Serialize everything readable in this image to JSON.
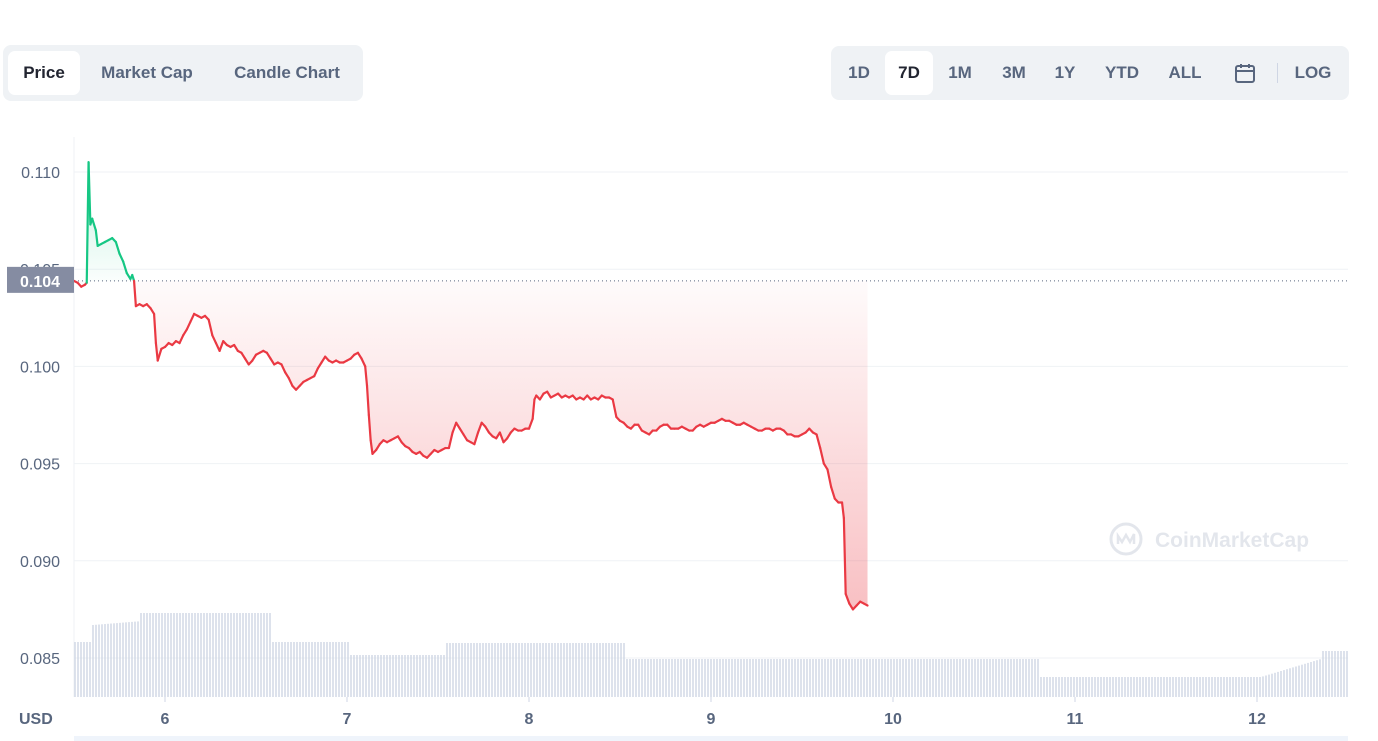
{
  "tabs": [
    "Price",
    "Market Cap",
    "Candle Chart"
  ],
  "active_tab": "Price",
  "ranges": [
    "1D",
    "7D",
    "1M",
    "3M",
    "1Y",
    "YTD",
    "ALL"
  ],
  "active_range": "7D",
  "log_label": "LOG",
  "calendar_icon": "calendar-icon",
  "currency_label": "USD",
  "watermark": "CoinMarketCap",
  "current_price_label": "0.104",
  "colors": {
    "up": "#16c784",
    "down": "#ea3943",
    "volume": "#cfd6e4",
    "grid": "#eff2f5"
  },
  "chart_data": {
    "type": "line",
    "y_ticks": [
      "0.110",
      "0.105",
      "0.100",
      "0.095",
      "0.090",
      "0.085"
    ],
    "ylim": [
      0.0835,
      0.1118
    ],
    "x_ticks": [
      "6",
      "7",
      "8",
      "9",
      "10",
      "11",
      "12"
    ],
    "xlim": [
      5.5,
      12.5
    ],
    "reference_price": 0.1044,
    "series": [
      {
        "values": [
          [
            5.5,
            0.1044
          ],
          [
            5.52,
            0.1043
          ],
          [
            5.54,
            0.1041
          ],
          [
            5.56,
            0.1042
          ],
          [
            5.57,
            0.1043
          ],
          [
            5.58,
            0.1105
          ],
          [
            5.59,
            0.1073
          ],
          [
            5.6,
            0.1076
          ],
          [
            5.62,
            0.107
          ],
          [
            5.63,
            0.1062
          ],
          [
            5.65,
            0.1063
          ],
          [
            5.67,
            0.1064
          ],
          [
            5.69,
            0.1065
          ],
          [
            5.71,
            0.1066
          ],
          [
            5.73,
            0.1064
          ],
          [
            5.75,
            0.1058
          ],
          [
            5.77,
            0.1054
          ],
          [
            5.79,
            0.1048
          ],
          [
            5.81,
            0.1045
          ],
          [
            5.82,
            0.1047
          ],
          [
            5.83,
            0.1044
          ],
          [
            5.84,
            0.1031
          ],
          [
            5.86,
            0.1032
          ],
          [
            5.88,
            0.1031
          ],
          [
            5.9,
            0.1032
          ],
          [
            5.92,
            0.103
          ],
          [
            5.94,
            0.1027
          ],
          [
            5.95,
            0.1012
          ],
          [
            5.96,
            0.1003
          ],
          [
            5.98,
            0.1009
          ],
          [
            6.0,
            0.101
          ],
          [
            6.02,
            0.1012
          ],
          [
            6.04,
            0.1011
          ],
          [
            6.06,
            0.1013
          ],
          [
            6.08,
            0.1012
          ],
          [
            6.1,
            0.1016
          ],
          [
            6.12,
            0.1019
          ],
          [
            6.14,
            0.1023
          ],
          [
            6.16,
            0.1027
          ],
          [
            6.18,
            0.1026
          ],
          [
            6.2,
            0.1025
          ],
          [
            6.22,
            0.1026
          ],
          [
            6.24,
            0.1024
          ],
          [
            6.26,
            0.1016
          ],
          [
            6.28,
            0.1012
          ],
          [
            6.3,
            0.1008
          ],
          [
            6.32,
            0.1013
          ],
          [
            6.34,
            0.1011
          ],
          [
            6.36,
            0.101
          ],
          [
            6.38,
            0.1011
          ],
          [
            6.4,
            0.1008
          ],
          [
            6.42,
            0.1007
          ],
          [
            6.44,
            0.1004
          ],
          [
            6.46,
            0.1001
          ],
          [
            6.48,
            0.1003
          ],
          [
            6.5,
            0.1006
          ],
          [
            6.52,
            0.1007
          ],
          [
            6.54,
            0.1008
          ],
          [
            6.56,
            0.1007
          ],
          [
            6.58,
            0.1004
          ],
          [
            6.6,
            0.1001
          ],
          [
            6.62,
            0.1002
          ],
          [
            6.64,
            0.1001
          ],
          [
            6.66,
            0.0997
          ],
          [
            6.68,
            0.0994
          ],
          [
            6.7,
            0.099
          ],
          [
            6.72,
            0.0988
          ],
          [
            6.74,
            0.099
          ],
          [
            6.76,
            0.0992
          ],
          [
            6.78,
            0.0993
          ],
          [
            6.8,
            0.0994
          ],
          [
            6.82,
            0.0995
          ],
          [
            6.84,
            0.0999
          ],
          [
            6.86,
            0.1002
          ],
          [
            6.88,
            0.1005
          ],
          [
            6.9,
            0.1003
          ],
          [
            6.92,
            0.1002
          ],
          [
            6.94,
            0.1003
          ],
          [
            6.96,
            0.1002
          ],
          [
            6.98,
            0.1002
          ],
          [
            7.0,
            0.1003
          ],
          [
            7.02,
            0.1004
          ],
          [
            7.04,
            0.1006
          ],
          [
            7.06,
            0.1007
          ],
          [
            7.08,
            0.1004
          ],
          [
            7.1,
            0.1
          ],
          [
            7.11,
            0.099
          ],
          [
            7.12,
            0.0975
          ],
          [
            7.13,
            0.0962
          ],
          [
            7.14,
            0.0955
          ],
          [
            7.16,
            0.0957
          ],
          [
            7.18,
            0.096
          ],
          [
            7.2,
            0.0962
          ],
          [
            7.22,
            0.0961
          ],
          [
            7.24,
            0.0962
          ],
          [
            7.26,
            0.0963
          ],
          [
            7.28,
            0.0964
          ],
          [
            7.3,
            0.0961
          ],
          [
            7.32,
            0.0959
          ],
          [
            7.34,
            0.0958
          ],
          [
            7.36,
            0.0956
          ],
          [
            7.38,
            0.0955
          ],
          [
            7.4,
            0.0956
          ],
          [
            7.42,
            0.0954
          ],
          [
            7.44,
            0.0953
          ],
          [
            7.46,
            0.0955
          ],
          [
            7.48,
            0.0957
          ],
          [
            7.5,
            0.0956
          ],
          [
            7.52,
            0.0957
          ],
          [
            7.54,
            0.0958
          ],
          [
            7.56,
            0.0958
          ],
          [
            7.58,
            0.0966
          ],
          [
            7.6,
            0.0971
          ],
          [
            7.62,
            0.0968
          ],
          [
            7.64,
            0.0965
          ],
          [
            7.66,
            0.0962
          ],
          [
            7.68,
            0.0961
          ],
          [
            7.7,
            0.096
          ],
          [
            7.72,
            0.0966
          ],
          [
            7.74,
            0.0971
          ],
          [
            7.76,
            0.0969
          ],
          [
            7.78,
            0.0966
          ],
          [
            7.8,
            0.0964
          ],
          [
            7.82,
            0.0963
          ],
          [
            7.84,
            0.0966
          ],
          [
            7.86,
            0.0961
          ],
          [
            7.88,
            0.0963
          ],
          [
            7.9,
            0.0966
          ],
          [
            7.92,
            0.0968
          ],
          [
            7.94,
            0.0967
          ],
          [
            7.96,
            0.0967
          ],
          [
            7.98,
            0.0968
          ],
          [
            8.0,
            0.0968
          ],
          [
            8.02,
            0.0973
          ],
          [
            8.03,
            0.0983
          ],
          [
            8.04,
            0.0985
          ],
          [
            8.06,
            0.0983
          ],
          [
            8.08,
            0.0986
          ],
          [
            8.1,
            0.0987
          ],
          [
            8.12,
            0.0984
          ],
          [
            8.14,
            0.0985
          ],
          [
            8.16,
            0.0986
          ],
          [
            8.18,
            0.0984
          ],
          [
            8.2,
            0.0985
          ],
          [
            8.22,
            0.0984
          ],
          [
            8.24,
            0.0985
          ],
          [
            8.26,
            0.0983
          ],
          [
            8.28,
            0.0984
          ],
          [
            8.3,
            0.0983
          ],
          [
            8.32,
            0.0985
          ],
          [
            8.34,
            0.0983
          ],
          [
            8.36,
            0.0984
          ],
          [
            8.38,
            0.0983
          ],
          [
            8.4,
            0.0985
          ],
          [
            8.42,
            0.0984
          ],
          [
            8.44,
            0.0984
          ],
          [
            8.46,
            0.0983
          ],
          [
            8.48,
            0.0974
          ],
          [
            8.5,
            0.0972
          ],
          [
            8.52,
            0.0971
          ],
          [
            8.54,
            0.0969
          ],
          [
            8.56,
            0.0968
          ],
          [
            8.58,
            0.097
          ],
          [
            8.6,
            0.097
          ],
          [
            8.62,
            0.0967
          ],
          [
            8.64,
            0.0966
          ],
          [
            8.66,
            0.0965
          ],
          [
            8.68,
            0.0967
          ],
          [
            8.7,
            0.0967
          ],
          [
            8.72,
            0.0969
          ],
          [
            8.74,
            0.097
          ],
          [
            8.76,
            0.097
          ],
          [
            8.78,
            0.0968
          ],
          [
            8.8,
            0.0968
          ],
          [
            8.82,
            0.0968
          ],
          [
            8.84,
            0.0969
          ],
          [
            8.86,
            0.0968
          ],
          [
            8.88,
            0.0967
          ],
          [
            8.9,
            0.0967
          ],
          [
            8.92,
            0.0969
          ],
          [
            8.94,
            0.097
          ],
          [
            8.96,
            0.0969
          ],
          [
            8.98,
            0.097
          ],
          [
            9.0,
            0.0971
          ],
          [
            9.02,
            0.0971
          ],
          [
            9.04,
            0.0972
          ],
          [
            9.06,
            0.0973
          ],
          [
            9.08,
            0.0972
          ],
          [
            9.1,
            0.0972
          ],
          [
            9.12,
            0.0971
          ],
          [
            9.14,
            0.097
          ],
          [
            9.16,
            0.097
          ],
          [
            9.18,
            0.0971
          ],
          [
            9.2,
            0.097
          ],
          [
            9.22,
            0.0969
          ],
          [
            9.24,
            0.0968
          ],
          [
            9.26,
            0.0967
          ],
          [
            9.28,
            0.0967
          ],
          [
            9.3,
            0.0968
          ],
          [
            9.32,
            0.0968
          ],
          [
            9.34,
            0.0967
          ],
          [
            9.36,
            0.0968
          ],
          [
            9.38,
            0.0968
          ],
          [
            9.4,
            0.0967
          ],
          [
            9.42,
            0.0965
          ],
          [
            9.44,
            0.0965
          ],
          [
            9.46,
            0.0964
          ],
          [
            9.48,
            0.0964
          ],
          [
            9.5,
            0.0965
          ],
          [
            9.52,
            0.0966
          ],
          [
            9.54,
            0.0968
          ],
          [
            9.56,
            0.0966
          ],
          [
            9.58,
            0.0965
          ],
          [
            9.6,
            0.0958
          ],
          [
            9.62,
            0.095
          ],
          [
            9.64,
            0.0947
          ],
          [
            9.66,
            0.0938
          ],
          [
            9.68,
            0.0932
          ],
          [
            9.7,
            0.093
          ],
          [
            9.72,
            0.093
          ],
          [
            9.73,
            0.0922
          ],
          [
            9.74,
            0.0883
          ],
          [
            9.76,
            0.0878
          ],
          [
            9.78,
            0.0875
          ],
          [
            9.8,
            0.0877
          ],
          [
            9.82,
            0.0879
          ],
          [
            9.84,
            0.0878
          ],
          [
            9.86,
            0.0877
          ]
        ]
      }
    ],
    "volume_profile": "descending-with-late-uptick"
  }
}
